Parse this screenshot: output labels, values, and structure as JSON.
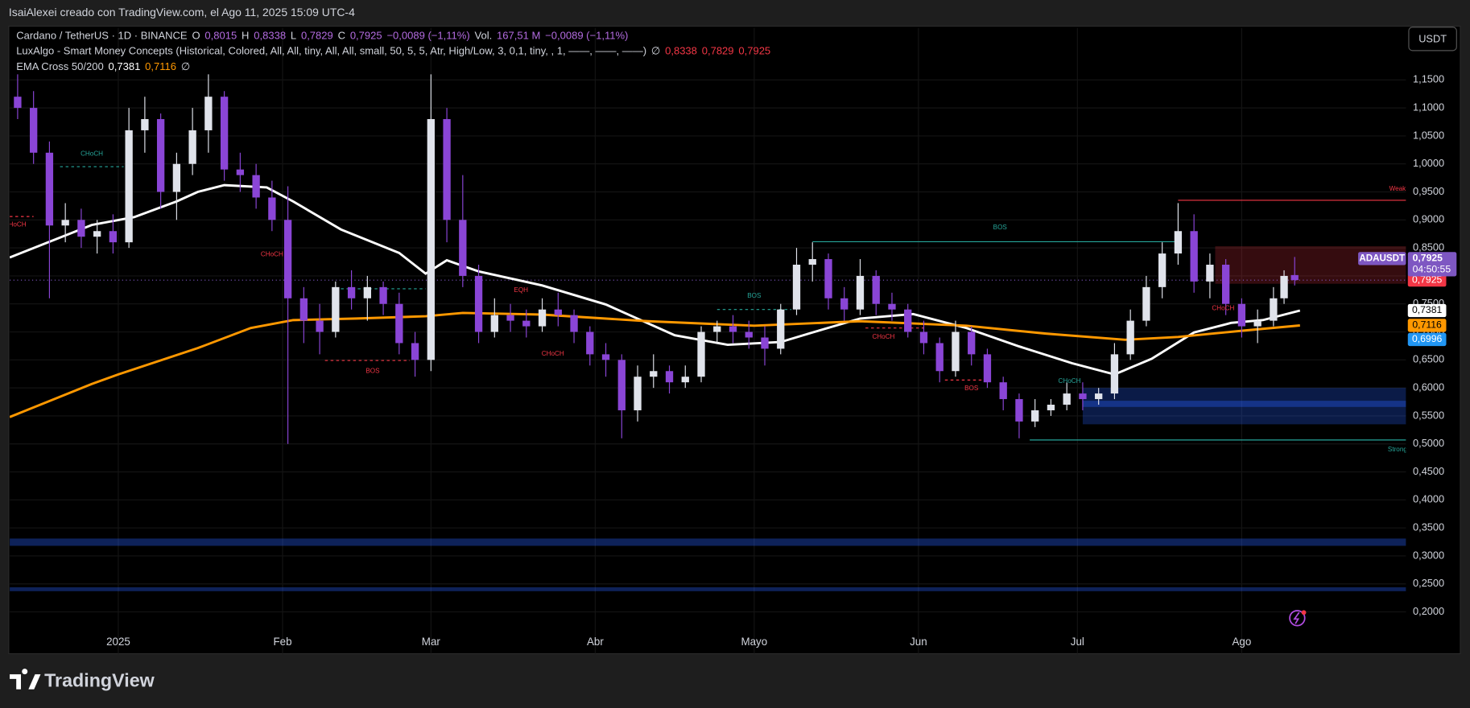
{
  "header": {
    "credit": "IsaiAlexei creado con TradingView.com, el Ago 11, 2025 15:09 UTC-4"
  },
  "chart_data": {
    "type": "candlestick",
    "legend": [
      [
        {
          "text": "Cardano / TetherUS · 1D · BINANCE",
          "color": "#d1d4dc"
        },
        {
          "text": "O",
          "color": "#d1d4dc"
        },
        {
          "text": "0,8015",
          "color": "#b36be0"
        },
        {
          "text": "H",
          "color": "#d1d4dc"
        },
        {
          "text": "0,8338",
          "color": "#b36be0"
        },
        {
          "text": "L",
          "color": "#d1d4dc"
        },
        {
          "text": "0,7829",
          "color": "#b36be0"
        },
        {
          "text": "C",
          "color": "#d1d4dc"
        },
        {
          "text": "0,7925",
          "color": "#b36be0"
        },
        {
          "text": "−0,0089 (−1,11%)",
          "color": "#b36be0"
        },
        {
          "text": "Vol.",
          "color": "#d1d4dc"
        },
        {
          "text": "167,51 M",
          "color": "#b36be0"
        },
        {
          "text": "−0,0089 (−1,11%)",
          "color": "#b36be0"
        }
      ],
      [
        {
          "text": "LuxAlgo - Smart Money Concepts (Historical, Colored, All, All, tiny, All, All, small, 50, 5, 5, Atr, High/Low, 3, 0,1, tiny, , 1, ——, ——, ——)",
          "color": "#d1d4dc"
        },
        {
          "text": "∅",
          "color": "#d1d4dc"
        },
        {
          "text": "0,8338",
          "color": "#f23645"
        },
        {
          "text": "0,7829",
          "color": "#f23645"
        },
        {
          "text": "0,7925",
          "color": "#f23645"
        }
      ],
      [
        {
          "text": "EMA Cross 50/200",
          "color": "#d1d4dc"
        },
        {
          "text": "0,7381",
          "color": "#ffffff"
        },
        {
          "text": "0,7116",
          "color": "#ff9800"
        },
        {
          "text": "∅",
          "color": "#d1d4dc"
        }
      ]
    ],
    "x": [
      -19,
      -16,
      -13,
      -10,
      -7,
      -4,
      -1,
      2,
      5,
      8,
      11,
      14,
      17,
      20,
      23,
      26,
      29,
      32,
      35,
      38,
      41,
      44,
      47,
      50,
      53,
      56,
      59,
      62,
      65,
      68,
      71,
      74,
      77,
      80,
      83,
      86,
      89,
      92,
      95,
      98,
      101,
      104,
      107,
      110,
      113,
      116,
      119,
      122,
      125,
      128,
      131,
      134,
      137,
      140,
      143,
      146,
      149,
      152,
      155,
      158,
      161,
      164,
      167,
      170,
      173,
      176,
      179,
      182,
      185,
      188,
      191,
      194,
      197,
      200,
      203,
      206,
      209,
      212,
      215,
      218,
      220,
      222
    ],
    "open": [
      1.12,
      1.1,
      1.02,
      0.89,
      0.9,
      0.87,
      0.88,
      0.86,
      1.06,
      1.08,
      0.95,
      1.0,
      1.06,
      1.12,
      0.99,
      0.98,
      0.94,
      0.9,
      0.76,
      0.72,
      0.7,
      0.78,
      0.76,
      0.78,
      0.75,
      0.68,
      0.65,
      1.08,
      0.9,
      0.8,
      0.7,
      0.73,
      0.72,
      0.71,
      0.74,
      0.73,
      0.7,
      0.66,
      0.65,
      0.56,
      0.62,
      0.63,
      0.61,
      0.62,
      0.7,
      0.71,
      0.7,
      0.69,
      0.67,
      0.74,
      0.82,
      0.83,
      0.76,
      0.74,
      0.8,
      0.75,
      0.74,
      0.7,
      0.68,
      0.63,
      0.7,
      0.66,
      0.61,
      0.58,
      0.54,
      0.56,
      0.57,
      0.59,
      0.58,
      0.59,
      0.66,
      0.72,
      0.78,
      0.84,
      0.88,
      0.79,
      0.82,
      0.75,
      0.71,
      0.72,
      0.76,
      0.8015
    ],
    "high": [
      1.16,
      1.13,
      1.04,
      0.93,
      0.92,
      0.9,
      0.91,
      1.1,
      1.12,
      1.09,
      1.02,
      1.1,
      1.16,
      1.13,
      1.02,
      1.0,
      0.97,
      0.96,
      0.78,
      0.75,
      0.79,
      0.81,
      0.8,
      0.79,
      0.77,
      0.7,
      1.16,
      1.1,
      0.98,
      0.82,
      0.76,
      0.75,
      0.74,
      0.76,
      0.77,
      0.74,
      0.71,
      0.68,
      0.66,
      0.64,
      0.66,
      0.64,
      0.64,
      0.71,
      0.72,
      0.73,
      0.72,
      0.71,
      0.75,
      0.85,
      0.86,
      0.84,
      0.78,
      0.83,
      0.81,
      0.77,
      0.75,
      0.72,
      0.69,
      0.72,
      0.71,
      0.67,
      0.62,
      0.59,
      0.58,
      0.58,
      0.61,
      0.61,
      0.6,
      0.68,
      0.74,
      0.8,
      0.86,
      0.93,
      0.91,
      0.84,
      0.83,
      0.76,
      0.74,
      0.78,
      0.81,
      0.8338
    ],
    "low": [
      1.08,
      1.0,
      0.76,
      0.86,
      0.85,
      0.84,
      0.84,
      0.85,
      1.02,
      0.92,
      0.9,
      0.98,
      1.02,
      0.97,
      0.95,
      0.92,
      0.88,
      0.5,
      0.68,
      0.66,
      0.69,
      0.74,
      0.72,
      0.73,
      0.66,
      0.62,
      0.63,
      0.86,
      0.78,
      0.68,
      0.69,
      0.7,
      0.69,
      0.7,
      0.71,
      0.68,
      0.64,
      0.62,
      0.51,
      0.54,
      0.6,
      0.59,
      0.6,
      0.61,
      0.68,
      0.68,
      0.67,
      0.64,
      0.66,
      0.73,
      0.79,
      0.74,
      0.72,
      0.73,
      0.73,
      0.72,
      0.69,
      0.66,
      0.61,
      0.62,
      0.64,
      0.6,
      0.56,
      0.51,
      0.53,
      0.55,
      0.56,
      0.56,
      0.57,
      0.58,
      0.65,
      0.71,
      0.76,
      0.82,
      0.77,
      0.76,
      0.73,
      0.69,
      0.68,
      0.71,
      0.75,
      0.7829
    ],
    "close": [
      1.1,
      1.02,
      0.89,
      0.9,
      0.87,
      0.88,
      0.86,
      1.06,
      1.08,
      0.95,
      1.0,
      1.06,
      1.12,
      0.99,
      0.98,
      0.94,
      0.9,
      0.76,
      0.72,
      0.7,
      0.78,
      0.76,
      0.78,
      0.75,
      0.68,
      0.65,
      1.08,
      0.9,
      0.8,
      0.7,
      0.73,
      0.72,
      0.71,
      0.74,
      0.73,
      0.7,
      0.66,
      0.65,
      0.56,
      0.62,
      0.63,
      0.61,
      0.62,
      0.7,
      0.71,
      0.7,
      0.69,
      0.67,
      0.74,
      0.82,
      0.83,
      0.76,
      0.74,
      0.8,
      0.75,
      0.74,
      0.7,
      0.68,
      0.63,
      0.7,
      0.66,
      0.61,
      0.58,
      0.54,
      0.56,
      0.57,
      0.59,
      0.58,
      0.59,
      0.66,
      0.72,
      0.78,
      0.84,
      0.88,
      0.79,
      0.82,
      0.75,
      0.71,
      0.72,
      0.76,
      0.8,
      0.7925
    ],
    "up_color": "#e0e3eb",
    "down_color": "#8a45d6",
    "lines": [
      {
        "color": "#ffffff",
        "x": [
          -20.5,
          -5,
          3,
          11,
          15,
          20,
          28,
          33,
          42,
          53,
          58,
          62,
          68,
          80,
          92,
          105,
          115,
          125,
          131,
          140,
          150,
          160,
          170,
          180,
          188,
          195,
          203,
          210,
          216,
          223
        ],
        "values": [
          0.833,
          0.891,
          0.905,
          0.933,
          0.95,
          0.962,
          0.958,
          0.933,
          0.883,
          0.841,
          0.804,
          0.828,
          0.808,
          0.783,
          0.749,
          0.694,
          0.677,
          0.682,
          0.699,
          0.724,
          0.732,
          0.707,
          0.674,
          0.644,
          0.624,
          0.652,
          0.699,
          0.716,
          0.721,
          0.7381
        ]
      },
      {
        "color": "#ff9800",
        "x": [
          -20.5,
          -5,
          0,
          15,
          25,
          33,
          45,
          58,
          65,
          80,
          100,
          120,
          140,
          160,
          175,
          190,
          200,
          212,
          223
        ],
        "values": [
          0.548,
          0.607,
          0.624,
          0.671,
          0.707,
          0.721,
          0.724,
          0.728,
          0.734,
          0.731,
          0.719,
          0.711,
          0.719,
          0.711,
          0.697,
          0.686,
          0.691,
          0.702,
          0.7116
        ]
      }
    ],
    "zones": [
      {
        "x": [
          182,
          243
        ],
        "y": [
          0.535,
          0.6
        ],
        "color": "rgba(41,98,255,0.28)"
      },
      {
        "x": [
          182,
          243
        ],
        "y": [
          0.566,
          0.577
        ],
        "color": "rgba(41,98,255,0.35)"
      },
      {
        "x": [
          207,
          243
        ],
        "y": [
          0.786,
          0.853
        ],
        "color": "rgba(242,54,69,0.22)"
      },
      {
        "x": [
          -20.5,
          243
        ],
        "y": [
          0.318,
          0.331
        ],
        "color": "rgba(41,98,255,0.35)"
      },
      {
        "x": [
          -20.5,
          243
        ],
        "y": [
          0.237,
          0.244
        ],
        "color": "rgba(41,98,255,0.35)"
      }
    ],
    "levels": [
      {
        "x": [
          131,
          200
        ],
        "y": 0.861,
        "color": "#26a69a",
        "dashed": false
      },
      {
        "x": [
          200,
          243
        ],
        "y": 0.935,
        "color": "#f23645",
        "dashed": false
      },
      {
        "x": [
          172,
          243
        ],
        "y": 0.507,
        "color": "#26a69a",
        "dashed": false
      },
      {
        "x": [
          -11,
          1
        ],
        "y": 0.995,
        "color": "#26a69a",
        "dashed": true
      },
      {
        "x": [
          -20.5,
          -16
        ],
        "y": 0.906,
        "color": "#f23645",
        "dashed": true
      },
      {
        "x": [
          39,
          55
        ],
        "y": 0.649,
        "color": "#f23645",
        "dashed": true
      },
      {
        "x": [
          42,
          58
        ],
        "y": 0.777,
        "color": "#26a69a",
        "dashed": true
      },
      {
        "x": [
          113,
          127
        ],
        "y": 0.74,
        "color": "#26a69a",
        "dashed": true
      },
      {
        "x": [
          141,
          152
        ],
        "y": 0.707,
        "color": "#f23645",
        "dashed": true
      },
      {
        "x": [
          156,
          164
        ],
        "y": 0.614,
        "color": "#f23645",
        "dashed": true
      }
    ],
    "annotations": [
      {
        "text": "CHoCH",
        "x": -5,
        "y": 1.018,
        "color": "#26a69a"
      },
      {
        "text": "CHoCH",
        "x": -19.5,
        "y": 0.891,
        "color": "#f23645"
      },
      {
        "text": "CHoCH",
        "x": 29,
        "y": 0.838,
        "color": "#f23645"
      },
      {
        "text": "BOS",
        "x": 48,
        "y": 0.63,
        "color": "#f23645"
      },
      {
        "text": "EQH",
        "x": 76,
        "y": 0.774,
        "color": "#f23645"
      },
      {
        "text": "CHoCH",
        "x": 82,
        "y": 0.661,
        "color": "#f23645"
      },
      {
        "text": "BOS",
        "x": 120,
        "y": 0.764,
        "color": "#26a69a"
      },
      {
        "text": "CHoCH",
        "x": 144.4,
        "y": 0.691,
        "color": "#f23645"
      },
      {
        "text": "BOS",
        "x": 161,
        "y": 0.599,
        "color": "#f23645"
      },
      {
        "text": "BOS",
        "x": 166.4,
        "y": 0.886,
        "color": "#26a69a"
      },
      {
        "text": "CHoCH",
        "x": 179.5,
        "y": 0.612,
        "color": "#26a69a"
      },
      {
        "text": "CHoCH",
        "x": 208.5,
        "y": 0.742,
        "color": "#f23645"
      },
      {
        "text": "Weak",
        "x": 241.4,
        "y": 0.955,
        "color": "#f23645"
      },
      {
        "text": "Strong",
        "x": 241.4,
        "y": 0.49,
        "color": "#26a69a"
      }
    ],
    "symbol_label": {
      "name": "ADAUSDT",
      "price": "0,7925",
      "countdown": "04:50:55",
      "color": "#7e57c2"
    },
    "price_labels": [
      {
        "value": 0.7925,
        "label": "0,7925",
        "color": "#f23645",
        "text_color": "#ffffff"
      },
      {
        "value": 0.7381,
        "label": "0,7381",
        "color": "#ffffff",
        "text_color": "#000000"
      },
      {
        "value": 0.7116,
        "label": "0,7116",
        "color": "#ff9800",
        "text_color": "#000000"
      },
      {
        "value": 0.6996,
        "label": "0,6996",
        "color": "#2196f3",
        "text_color": "#ffffff"
      }
    ],
    "currency": "USDT",
    "xlim": [
      -20.5,
      243
    ],
    "xticks": [
      {
        "value": 0,
        "label": "2025"
      },
      {
        "value": 31,
        "label": "Feb"
      },
      {
        "value": 59,
        "label": "Mar"
      },
      {
        "value": 90,
        "label": "Abr"
      },
      {
        "value": 120,
        "label": "Mayo"
      },
      {
        "value": 151,
        "label": "Jun"
      },
      {
        "value": 181,
        "label": "Jul"
      },
      {
        "value": 212,
        "label": "Ago"
      }
    ],
    "ylim": [
      0.1254,
      1.2425
    ],
    "yticks": [
      {
        "value": 0.2,
        "label": "0,2000"
      },
      {
        "value": 0.25,
        "label": "0,2500"
      },
      {
        "value": 0.3,
        "label": "0,3000"
      },
      {
        "value": 0.35,
        "label": "0,3500"
      },
      {
        "value": 0.4,
        "label": "0,4000"
      },
      {
        "value": 0.45,
        "label": "0,4500"
      },
      {
        "value": 0.5,
        "label": "0,5000"
      },
      {
        "value": 0.55,
        "label": "0,5500"
      },
      {
        "value": 0.6,
        "label": "0,6000"
      },
      {
        "value": 0.65,
        "label": "0,6500"
      },
      {
        "value": 0.7,
        "label": "0,7000"
      },
      {
        "value": 0.75,
        "label": "0,7500"
      },
      {
        "value": 0.8,
        "label": "0,8000"
      },
      {
        "value": 0.85,
        "label": "0,8500"
      },
      {
        "value": 0.9,
        "label": "0,9000"
      },
      {
        "value": 0.95,
        "label": "0,9500"
      },
      {
        "value": 1.0,
        "label": "1,0000"
      },
      {
        "value": 1.05,
        "label": "1,0500"
      },
      {
        "value": 1.1,
        "label": "1,1000"
      },
      {
        "value": 1.15,
        "label": "1,1500"
      }
    ],
    "grid": true
  },
  "footer": {
    "brand": "TradingView"
  }
}
